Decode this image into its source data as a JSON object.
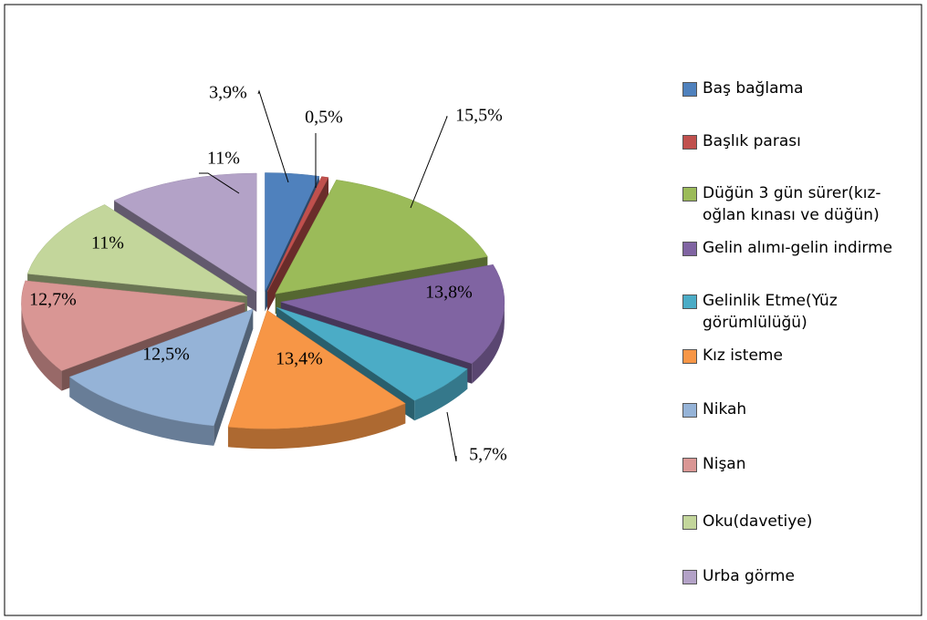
{
  "chart_data": {
    "type": "pie",
    "categories": [
      "Baş bağlama",
      "Başlık parası",
      "Düğün 3 gün sürer(kız-oğlan kınası ve düğün)",
      "Gelin alımı-gelin indirme",
      "Gelinlik Etme(Yüz görümlülüğü)",
      "Kız isteme",
      "Nikah",
      "Nişan",
      "Oku(davetiye)",
      "Urba görme"
    ],
    "values": [
      3.9,
      0.5,
      15.5,
      13.8,
      5.7,
      13.4,
      12.5,
      12.7,
      11,
      11
    ],
    "value_labels": [
      "3,9%",
      "0,5%",
      "15,5%",
      "13,8%",
      "5,7%",
      "13,4%",
      "12,5%",
      "12,7%",
      "11%",
      "11%"
    ],
    "colors": [
      "#4f81bd",
      "#c0504d",
      "#9bbb59",
      "#8064a2",
      "#4bacc6",
      "#f79646",
      "#95b3d7",
      "#d99694",
      "#c3d69b",
      "#b3a2c7"
    ],
    "legend": "right"
  }
}
